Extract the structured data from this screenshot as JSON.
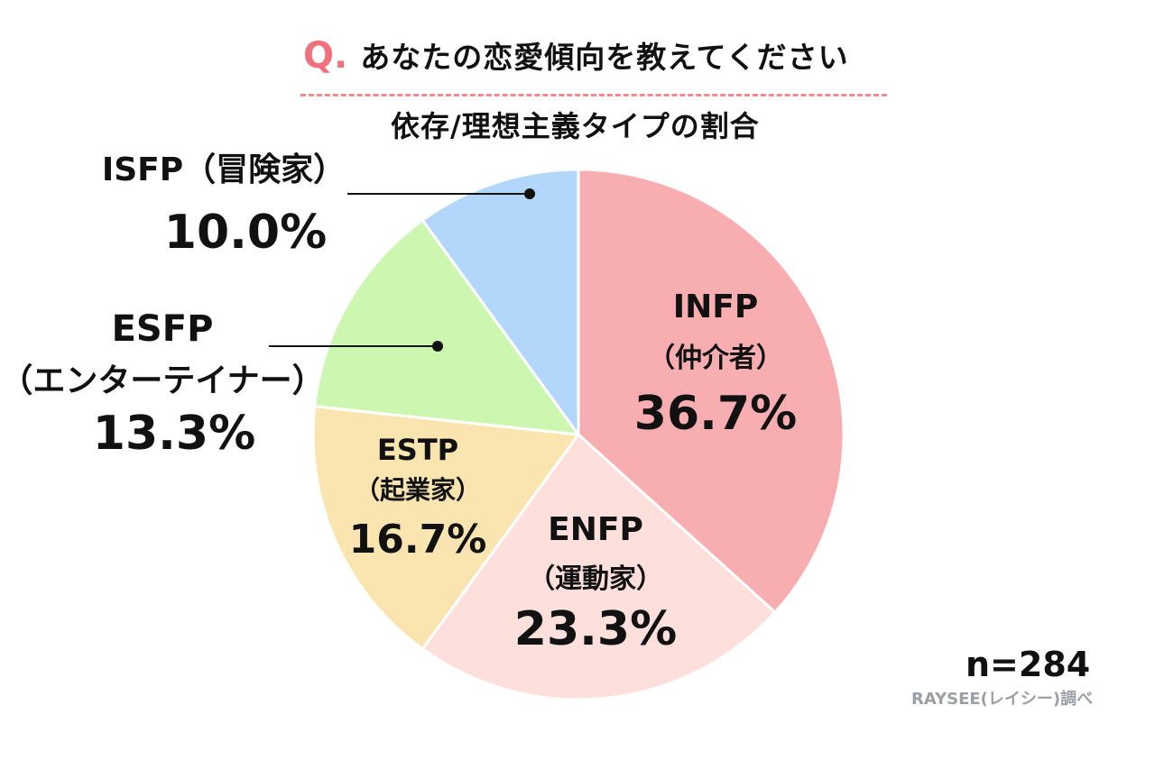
{
  "header": {
    "question_mark": "Q.",
    "question": "あなたの恋愛傾向を教えてください",
    "subtitle": "依存/理想主義タイプの割合"
  },
  "sample": "n=284",
  "source": "RAYSEE(レイシー)調べ",
  "colors": {
    "accent": "#f26f7d",
    "divider": "#f28a92"
  },
  "chart_data": {
    "type": "pie",
    "title": "依存/理想主義タイプの割合",
    "start_angle": "12 o'clock",
    "direction": "clockwise",
    "slices": [
      {
        "label": "INFP",
        "sublabel": "（仲介者）",
        "value": 36.7,
        "display": "36.7%",
        "color": "#f8aeb0"
      },
      {
        "label": "ENFP",
        "sublabel": "（運動家）",
        "value": 23.3,
        "display": "23.3%",
        "color": "#fde0dc"
      },
      {
        "label": "ESTP",
        "sublabel": "（起業家）",
        "value": 16.7,
        "display": "16.7%",
        "color": "#fae5b0"
      },
      {
        "label": "ESFP",
        "sublabel": "（エンターテイナー）",
        "value": 13.3,
        "display": "13.3%",
        "color": "#cdf7b0"
      },
      {
        "label": "ISFP",
        "sublabel": "（冒険家）",
        "value": 10.0,
        "display": "10.0%",
        "color": "#b2d7fa"
      }
    ]
  }
}
